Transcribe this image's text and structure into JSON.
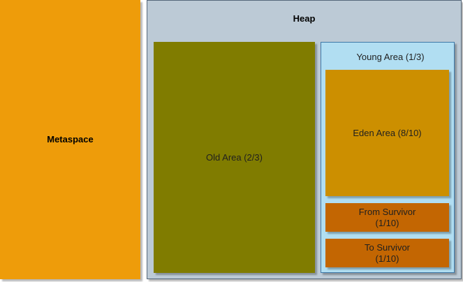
{
  "metaspace": {
    "label": "Metaspace",
    "color": "#ee9c0a"
  },
  "heap": {
    "title": "Heap",
    "color": "#bccad6",
    "old_area": {
      "label": "Old Area (2/3)",
      "color": "#807c00"
    },
    "young_area": {
      "title": "Young Area (1/3)",
      "color": "#b1def2",
      "eden": {
        "label": "Eden Area (8/10)",
        "color": "#cc8f00"
      },
      "from_survivor": {
        "label": "From Survivor\n(1/10)",
        "color": "#c36602"
      },
      "to_survivor": {
        "label": "To Survivor\n(1/10)",
        "color": "#c36602"
      }
    }
  }
}
